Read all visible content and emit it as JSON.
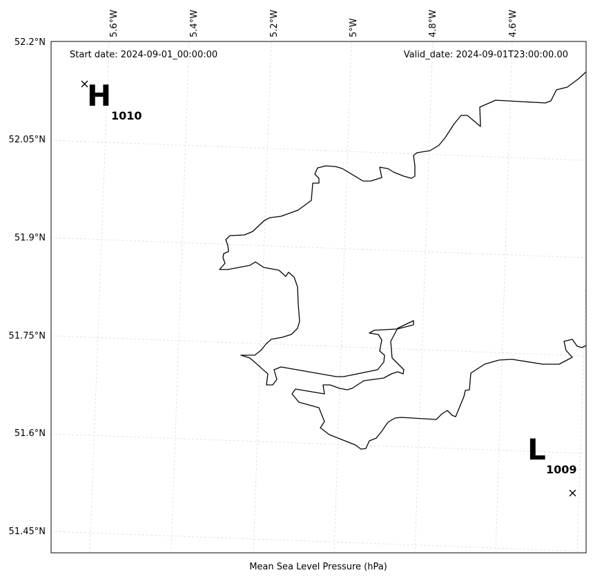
{
  "map": {
    "start_date": "Start date: 2024-09-01_00:00:00",
    "valid_date": "Valid_date: 2024-09-01T23:00:00.00",
    "caption": "Mean Sea Level Pressure (hPa)",
    "lon_ticks": [
      "5.6°W",
      "5.4°W",
      "5.2°W",
      "5°W",
      "4.8°W",
      "4.6°W"
    ],
    "lat_ticks": [
      "52.2°N",
      "52.05°N",
      "51.9°N",
      "51.75°N",
      "51.6°N",
      "51.45°N"
    ],
    "high": {
      "letter": "H",
      "value": "1010"
    },
    "low": {
      "letter": "L",
      "value": "1009"
    },
    "colors": {
      "coastline": "#000000",
      "gridlines": "#d9d9d9",
      "background": "#ffffff"
    }
  }
}
